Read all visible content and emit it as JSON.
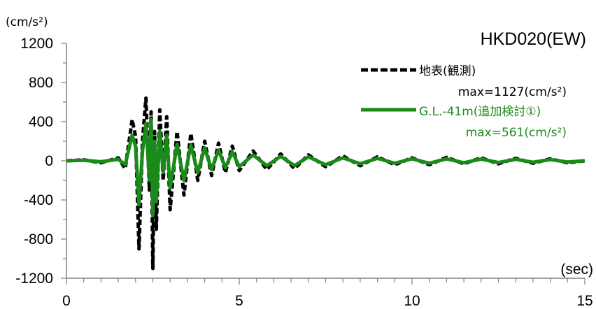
{
  "chart_data": {
    "type": "line",
    "title": "HKD020(EW)",
    "ylabel_unit": "(cm/s²)",
    "xlabel_unit": "(sec)",
    "xlim": [
      0,
      15
    ],
    "ylim": [
      -1200,
      1200
    ],
    "x_ticks": [
      0,
      5,
      10,
      15
    ],
    "y_ticks": [
      1200,
      800,
      400,
      0,
      -400,
      -800,
      -1200
    ],
    "series": [
      {
        "name": "地表(観測)",
        "max_label": "max=1127(cm/s²)",
        "color": "#000000",
        "style": "dashed",
        "x": [
          0,
          0.5,
          1.0,
          1.5,
          1.7,
          1.9,
          2.0,
          2.1,
          2.2,
          2.3,
          2.4,
          2.45,
          2.5,
          2.55,
          2.6,
          2.7,
          2.8,
          2.9,
          3.0,
          3.2,
          3.4,
          3.6,
          3.8,
          4.0,
          4.2,
          4.4,
          4.6,
          4.8,
          5.0,
          5.4,
          5.8,
          6.2,
          6.6,
          7.0,
          7.5,
          8.0,
          8.5,
          9.0,
          9.5,
          10.0,
          10.5,
          11.0,
          11.5,
          12.0,
          12.5,
          13.0,
          13.5,
          14.0,
          14.5,
          15.0
        ],
        "y": [
          0,
          10,
          -20,
          30,
          -80,
          420,
          250,
          -900,
          200,
          640,
          -300,
          500,
          -1100,
          300,
          -700,
          520,
          -200,
          450,
          -500,
          300,
          -350,
          280,
          -200,
          200,
          -150,
          180,
          -120,
          150,
          -100,
          100,
          -90,
          70,
          -80,
          60,
          -60,
          50,
          -50,
          40,
          -40,
          30,
          -40,
          35,
          -30,
          30,
          -30,
          25,
          -25,
          20,
          -20,
          0
        ]
      },
      {
        "name": "G.L.-41m(追加検討①)",
        "max_label": "max=561(cm/s²)",
        "color": "#1a8a1a",
        "style": "solid",
        "x": [
          0,
          0.5,
          1.0,
          1.5,
          1.7,
          1.9,
          2.0,
          2.1,
          2.2,
          2.3,
          2.4,
          2.45,
          2.5,
          2.55,
          2.6,
          2.7,
          2.8,
          2.9,
          3.0,
          3.2,
          3.4,
          3.6,
          3.8,
          4.0,
          4.2,
          4.4,
          4.6,
          4.8,
          5.0,
          5.4,
          5.8,
          6.2,
          6.6,
          7.0,
          7.5,
          8.0,
          8.5,
          9.0,
          9.5,
          10.0,
          10.5,
          11.0,
          11.5,
          12.0,
          12.5,
          13.0,
          13.5,
          14.0,
          14.5,
          15.0
        ],
        "y": [
          0,
          5,
          -10,
          15,
          -40,
          260,
          150,
          -450,
          100,
          380,
          -200,
          420,
          -561,
          200,
          -420,
          300,
          -120,
          260,
          -280,
          170,
          -200,
          160,
          -120,
          130,
          -90,
          110,
          -70,
          90,
          -60,
          60,
          -50,
          45,
          -50,
          40,
          -40,
          30,
          -30,
          25,
          -25,
          20,
          -25,
          20,
          -20,
          18,
          -18,
          15,
          -15,
          12,
          -12,
          0
        ]
      }
    ]
  }
}
